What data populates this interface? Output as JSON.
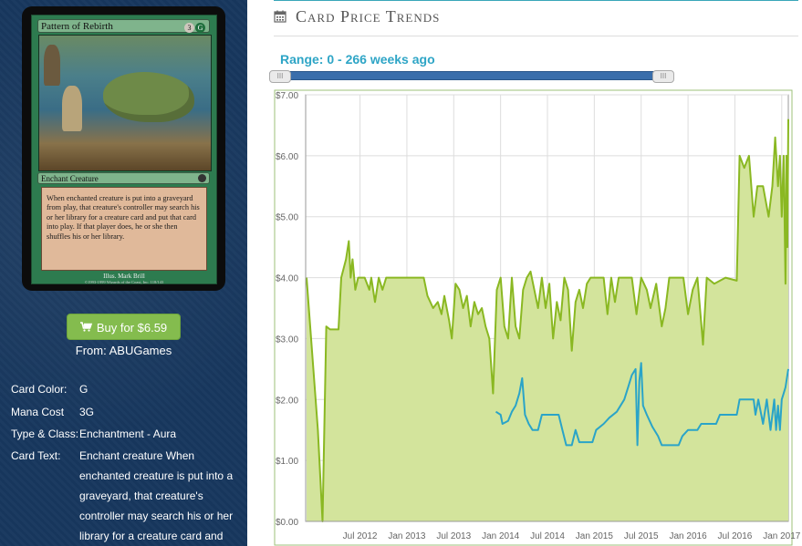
{
  "card": {
    "name": "Pattern of Rebirth",
    "mana_cost_generic": "3",
    "mana_cost_color": "G",
    "type_line": "Enchant Creature",
    "rules_text": "When enchanted creature is put into a graveyard from play, that creature's controller may search his or her library for a creature card and put that card into play. If that player does, he or she then shuffles his or her library.",
    "illustrator": "Illus. Mark Brill",
    "copyright": "©1993-1999 Wizards of the Coast, Inc. 118/143"
  },
  "buy": {
    "label": "Buy for $6.59",
    "icon": "shopping-cart-icon",
    "from": "From: ABUGames"
  },
  "details": [
    {
      "label": "Card Color:",
      "value": "G"
    },
    {
      "label": "Mana Cost",
      "value": "3G"
    },
    {
      "label": "Type & Class:",
      "value": "Enchantment - Aura"
    },
    {
      "label": "Card Text:",
      "value": "Enchant creature When enchanted creature is put into a graveyard, that creature's controller may search his or her library for a creature card and"
    }
  ],
  "section": {
    "title": "Card Price Trends",
    "icon": "calendar-icon"
  },
  "range": {
    "label": "Range: 0 - 266 weeks ago",
    "handle_glyph": "III"
  },
  "colors": {
    "accent": "#2ea5c6",
    "series_retail": "#8ab822",
    "series_buylist": "#2aa4c8",
    "buy_button": "#84bc4e",
    "panel_bg": "#17375e"
  },
  "chart_data": {
    "type": "line",
    "yticks": [
      "$0.00",
      "$1.00",
      "$2.00",
      "$3.00",
      "$4.00",
      "$5.00",
      "$6.00",
      "$7.00"
    ],
    "ylim": [
      0,
      7
    ],
    "xticks": [
      {
        "label": "Jul 2012",
        "t": 2012.5
      },
      {
        "label": "Jan 2013",
        "t": 2013.0
      },
      {
        "label": "Jul 2013",
        "t": 2013.5
      },
      {
        "label": "Jan 2014",
        "t": 2014.0
      },
      {
        "label": "Jul 2014",
        "t": 2014.5
      },
      {
        "label": "Jan 2015",
        "t": 2015.0
      },
      {
        "label": "Jul 2015",
        "t": 2015.5
      },
      {
        "label": "Jan 2016",
        "t": 2016.0
      },
      {
        "label": "Jul 2016",
        "t": 2016.5
      },
      {
        "label": "Jan 2017",
        "t": 2017.0
      }
    ],
    "xlim": [
      2011.92,
      2017.07
    ],
    "grid": true,
    "series": [
      {
        "area": true,
        "points": [
          [
            2011.93,
            4.0
          ],
          [
            2012.05,
            1.5
          ],
          [
            2012.1,
            0.0
          ],
          [
            2012.14,
            3.2
          ],
          [
            2012.18,
            3.15
          ],
          [
            2012.27,
            3.15
          ],
          [
            2012.3,
            4.0
          ],
          [
            2012.35,
            4.3
          ],
          [
            2012.38,
            4.6
          ],
          [
            2012.4,
            4.0
          ],
          [
            2012.42,
            4.3
          ],
          [
            2012.45,
            3.8
          ],
          [
            2012.48,
            4.0
          ],
          [
            2012.55,
            4.0
          ],
          [
            2012.6,
            3.8
          ],
          [
            2012.62,
            4.0
          ],
          [
            2012.66,
            3.6
          ],
          [
            2012.7,
            4.0
          ],
          [
            2012.74,
            3.8
          ],
          [
            2012.78,
            4.0
          ],
          [
            2012.9,
            4.0
          ],
          [
            2013.1,
            4.0
          ],
          [
            2013.18,
            4.0
          ],
          [
            2013.22,
            3.7
          ],
          [
            2013.28,
            3.5
          ],
          [
            2013.33,
            3.6
          ],
          [
            2013.37,
            3.4
          ],
          [
            2013.4,
            3.7
          ],
          [
            2013.45,
            3.3
          ],
          [
            2013.48,
            3.0
          ],
          [
            2013.52,
            3.9
          ],
          [
            2013.56,
            3.8
          ],
          [
            2013.6,
            3.5
          ],
          [
            2013.64,
            3.7
          ],
          [
            2013.68,
            3.2
          ],
          [
            2013.72,
            3.6
          ],
          [
            2013.76,
            3.4
          ],
          [
            2013.8,
            3.5
          ],
          [
            2013.84,
            3.2
          ],
          [
            2013.88,
            3.0
          ],
          [
            2013.92,
            2.1
          ],
          [
            2013.96,
            3.8
          ],
          [
            2014.0,
            4.0
          ],
          [
            2014.04,
            3.2
          ],
          [
            2014.08,
            3.0
          ],
          [
            2014.12,
            4.0
          ],
          [
            2014.16,
            3.2
          ],
          [
            2014.2,
            3.0
          ],
          [
            2014.24,
            3.8
          ],
          [
            2014.28,
            4.0
          ],
          [
            2014.32,
            4.1
          ],
          [
            2014.36,
            3.8
          ],
          [
            2014.4,
            3.5
          ],
          [
            2014.44,
            4.0
          ],
          [
            2014.48,
            3.5
          ],
          [
            2014.52,
            3.9
          ],
          [
            2014.56,
            3.0
          ],
          [
            2014.6,
            3.6
          ],
          [
            2014.64,
            3.3
          ],
          [
            2014.68,
            4.0
          ],
          [
            2014.72,
            3.8
          ],
          [
            2014.76,
            2.8
          ],
          [
            2014.8,
            3.6
          ],
          [
            2014.84,
            3.8
          ],
          [
            2014.88,
            3.5
          ],
          [
            2014.92,
            3.9
          ],
          [
            2014.96,
            4.0
          ],
          [
            2015.1,
            4.0
          ],
          [
            2015.14,
            3.4
          ],
          [
            2015.18,
            4.0
          ],
          [
            2015.22,
            3.6
          ],
          [
            2015.26,
            4.0
          ],
          [
            2015.4,
            4.0
          ],
          [
            2015.45,
            3.4
          ],
          [
            2015.5,
            4.0
          ],
          [
            2015.56,
            3.8
          ],
          [
            2015.6,
            3.5
          ],
          [
            2015.66,
            3.9
          ],
          [
            2015.72,
            3.2
          ],
          [
            2015.76,
            3.5
          ],
          [
            2015.8,
            4.0
          ],
          [
            2015.95,
            4.0
          ],
          [
            2016.0,
            3.4
          ],
          [
            2016.05,
            3.8
          ],
          [
            2016.1,
            4.0
          ],
          [
            2016.16,
            2.9
          ],
          [
            2016.2,
            4.0
          ],
          [
            2016.28,
            3.9
          ],
          [
            2016.4,
            4.0
          ],
          [
            2016.52,
            3.95
          ],
          [
            2016.55,
            6.0
          ],
          [
            2016.6,
            5.8
          ],
          [
            2016.65,
            6.0
          ],
          [
            2016.7,
            5.0
          ],
          [
            2016.74,
            5.5
          ],
          [
            2016.8,
            5.5
          ],
          [
            2016.86,
            5.0
          ],
          [
            2016.9,
            5.5
          ],
          [
            2016.93,
            6.3
          ],
          [
            2016.96,
            5.5
          ],
          [
            2016.98,
            6.0
          ],
          [
            2017.0,
            5.0
          ],
          [
            2017.02,
            6.0
          ],
          [
            2017.04,
            3.9
          ],
          [
            2017.05,
            6.0
          ],
          [
            2017.06,
            4.5
          ],
          [
            2017.07,
            6.6
          ]
        ]
      },
      {
        "area": false,
        "points": [
          [
            2013.95,
            1.8
          ],
          [
            2014.0,
            1.75
          ],
          [
            2014.02,
            1.6
          ],
          [
            2014.08,
            1.65
          ],
          [
            2014.12,
            1.8
          ],
          [
            2014.16,
            1.9
          ],
          [
            2014.2,
            2.1
          ],
          [
            2014.23,
            2.35
          ],
          [
            2014.26,
            1.75
          ],
          [
            2014.3,
            1.6
          ],
          [
            2014.34,
            1.5
          ],
          [
            2014.4,
            1.5
          ],
          [
            2014.44,
            1.75
          ],
          [
            2014.62,
            1.75
          ],
          [
            2014.66,
            1.5
          ],
          [
            2014.7,
            1.25
          ],
          [
            2014.76,
            1.25
          ],
          [
            2014.8,
            1.5
          ],
          [
            2014.84,
            1.3
          ],
          [
            2014.98,
            1.3
          ],
          [
            2015.02,
            1.5
          ],
          [
            2015.1,
            1.6
          ],
          [
            2015.16,
            1.7
          ],
          [
            2015.24,
            1.8
          ],
          [
            2015.32,
            2.0
          ],
          [
            2015.36,
            2.2
          ],
          [
            2015.4,
            2.4
          ],
          [
            2015.44,
            2.5
          ],
          [
            2015.46,
            1.25
          ],
          [
            2015.48,
            2.3
          ],
          [
            2015.5,
            2.6
          ],
          [
            2015.52,
            1.9
          ],
          [
            2015.56,
            1.75
          ],
          [
            2015.62,
            1.55
          ],
          [
            2015.68,
            1.4
          ],
          [
            2015.72,
            1.25
          ],
          [
            2015.9,
            1.25
          ],
          [
            2015.94,
            1.4
          ],
          [
            2016.0,
            1.5
          ],
          [
            2016.1,
            1.5
          ],
          [
            2016.14,
            1.6
          ],
          [
            2016.3,
            1.6
          ],
          [
            2016.34,
            1.75
          ],
          [
            2016.52,
            1.75
          ],
          [
            2016.55,
            2.0
          ],
          [
            2016.7,
            2.0
          ],
          [
            2016.72,
            1.75
          ],
          [
            2016.75,
            2.0
          ],
          [
            2016.8,
            1.6
          ],
          [
            2016.84,
            2.0
          ],
          [
            2016.88,
            1.5
          ],
          [
            2016.92,
            2.0
          ],
          [
            2016.94,
            1.5
          ],
          [
            2016.96,
            1.9
          ],
          [
            2016.98,
            1.5
          ],
          [
            2017.0,
            2.0
          ],
          [
            2017.02,
            2.1
          ],
          [
            2017.04,
            2.2
          ],
          [
            2017.07,
            2.5
          ]
        ]
      }
    ]
  }
}
